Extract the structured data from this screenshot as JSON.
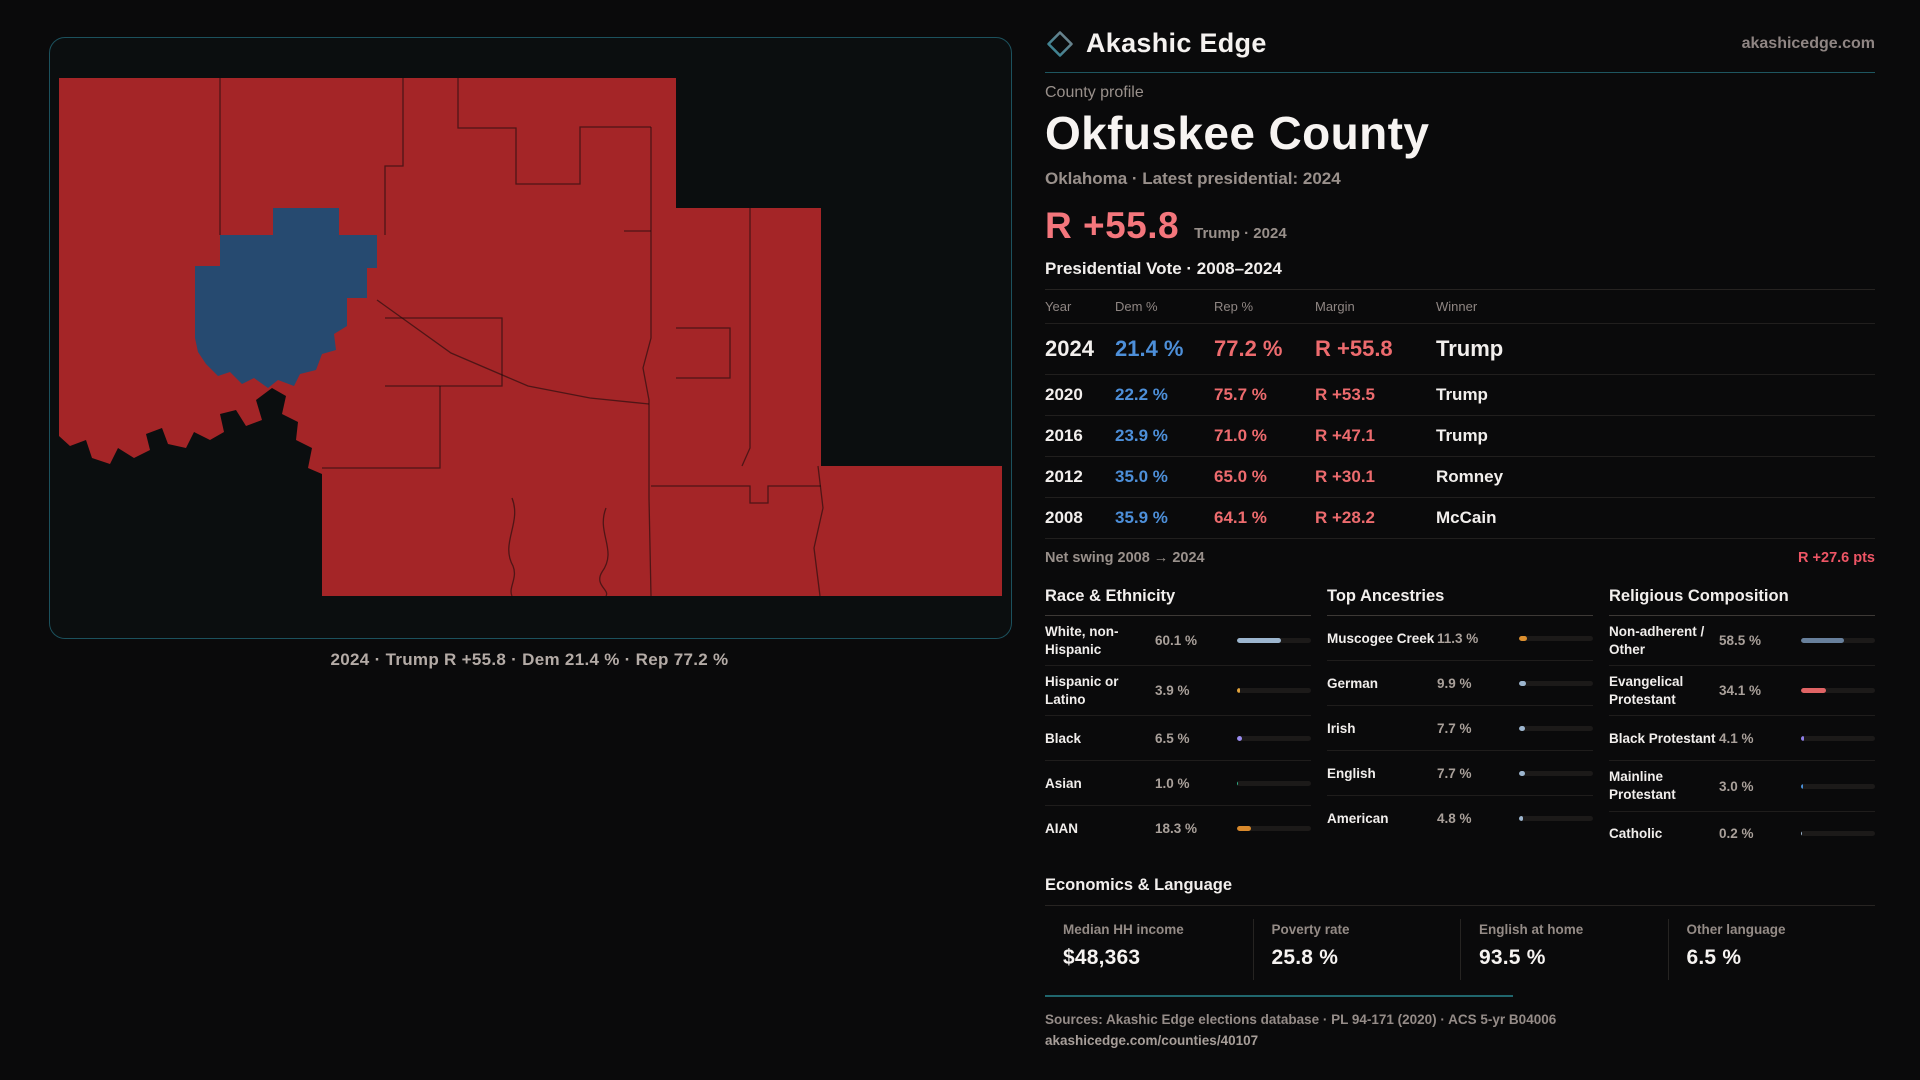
{
  "brand": {
    "name": "Akashic Edge",
    "domain": "akashicedge.com"
  },
  "theme": {
    "rep_red": "#ed6b6e",
    "dem_blue": "#4d8fd9",
    "headline_red": "#f4767c",
    "swing_red": "#ee5565",
    "teal_accent": "#20666d",
    "map_rep": "#a42527",
    "map_dem": "#264a70"
  },
  "map": {
    "caption": "2024 · Trump R +55.8 · Dem 21.4 % · Rep 77.2 %"
  },
  "profile": {
    "eyebrow": "County profile",
    "title": "Okfuskee County",
    "subtitle": "Oklahoma · Latest presidential: 2024",
    "headline_margin": "R +55.8",
    "headline_note": "Trump · 2024"
  },
  "vote_table": {
    "title": "Presidential Vote · 2008–2024",
    "columns": [
      "Year",
      "Dem %",
      "Rep %",
      "Margin",
      "Winner"
    ],
    "rows": [
      {
        "year": "2024",
        "dem": "21.4 %",
        "rep": "77.2 %",
        "margin": "R +55.8",
        "winner": "Trump",
        "latest": true
      },
      {
        "year": "2020",
        "dem": "22.2 %",
        "rep": "75.7 %",
        "margin": "R +53.5",
        "winner": "Trump",
        "latest": false
      },
      {
        "year": "2016",
        "dem": "23.9 %",
        "rep": "71.0 %",
        "margin": "R +47.1",
        "winner": "Trump",
        "latest": false
      },
      {
        "year": "2012",
        "dem": "35.0 %",
        "rep": "65.0 %",
        "margin": "R +30.1",
        "winner": "Romney",
        "latest": false
      },
      {
        "year": "2008",
        "dem": "35.9 %",
        "rep": "64.1 %",
        "margin": "R +28.2",
        "winner": "McCain",
        "latest": false
      }
    ],
    "net_swing_label": "Net swing 2008 → 2024",
    "net_swing_value": "R +27.6 pts"
  },
  "chart_data": [
    {
      "type": "bar",
      "title": "Race & Ethnicity",
      "categories": [
        "White, non-Hispanic",
        "Hispanic or Latino",
        "Black",
        "Asian",
        "AIAN"
      ],
      "values": [
        60.1,
        3.9,
        6.5,
        1.0,
        18.3
      ],
      "value_labels": [
        "60.1 %",
        "3.9 %",
        "6.5 %",
        "1.0 %",
        "18.3 %"
      ],
      "bar_colors": [
        "#9db6cf",
        "#e2a33c",
        "#9a8cf0",
        "#2fae85",
        "#d8892c"
      ],
      "xlim": [
        0,
        100
      ],
      "unit": "%"
    },
    {
      "type": "bar",
      "title": "Top Ancestries",
      "categories": [
        "Muscogee Creek",
        "German",
        "Irish",
        "English",
        "American"
      ],
      "values": [
        11.3,
        9.9,
        7.7,
        7.7,
        4.8
      ],
      "value_labels": [
        "11.3 %",
        "9.9 %",
        "7.7 %",
        "7.7 %",
        "4.8 %"
      ],
      "bar_colors": [
        "#dc8f2f",
        "#9db6cf",
        "#9db6cf",
        "#9db6cf",
        "#9db6cf"
      ],
      "xlim": [
        0,
        100
      ],
      "unit": "%"
    },
    {
      "type": "bar",
      "title": "Religious Composition",
      "categories": [
        "Non-adherent / Other",
        "Evangelical Protestant",
        "Black Protestant",
        "Mainline Protestant",
        "Catholic"
      ],
      "values": [
        58.5,
        34.1,
        4.1,
        3.0,
        0.2
      ],
      "value_labels": [
        "58.5 %",
        "34.1 %",
        "4.1 %",
        "3.0 %",
        "0.2 %"
      ],
      "bar_colors": [
        "#68809c",
        "#e06465",
        "#8f7fe8",
        "#4a90d9",
        "#9db6cf"
      ],
      "xlim": [
        0,
        100
      ],
      "unit": "%"
    }
  ],
  "economics": {
    "title": "Economics & Language",
    "stats": [
      {
        "label": "Median HH income",
        "value": "$48,363"
      },
      {
        "label": "Poverty rate",
        "value": "25.8 %"
      },
      {
        "label": "English at home",
        "value": "93.5 %"
      },
      {
        "label": "Other language",
        "value": "6.5 %"
      }
    ]
  },
  "footer": {
    "sources": "Sources: Akashic Edge elections database · PL 94-171 (2020) · ACS 5-yr B04006",
    "permalink": "akashicedge.com/counties/40107"
  }
}
